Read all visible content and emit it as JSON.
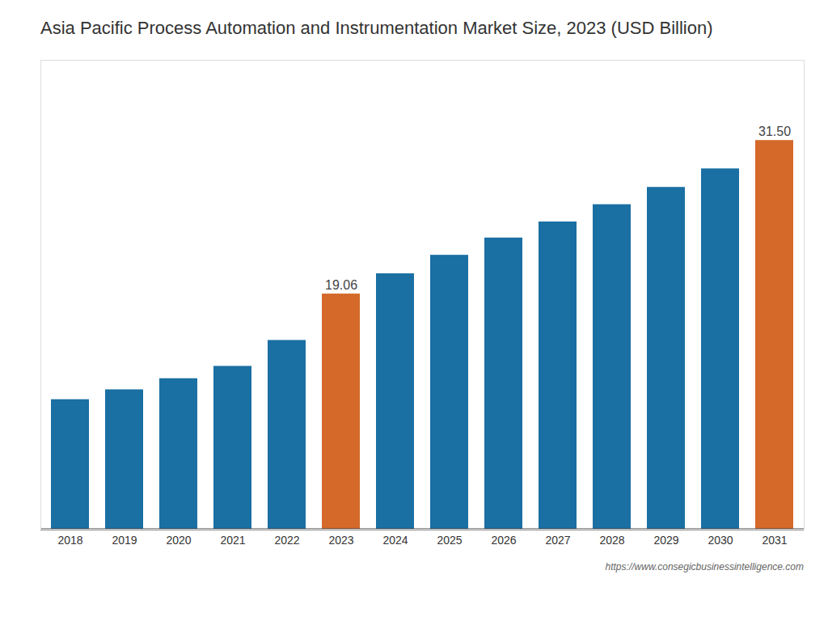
{
  "chart_data": {
    "type": "bar",
    "title": "Asia Pacific Process Automation and Instrumentation Market Size, 2023 (USD Billion)",
    "categories": [
      "2018",
      "2019",
      "2020",
      "2021",
      "2022",
      "2023",
      "2024",
      "2025",
      "2026",
      "2027",
      "2028",
      "2029",
      "2030",
      "2031"
    ],
    "values": [
      10.5,
      11.3,
      12.2,
      13.2,
      15.3,
      19.06,
      20.7,
      22.2,
      23.6,
      24.9,
      26.3,
      27.7,
      29.2,
      31.5
    ],
    "colors": [
      "#1a6fa3",
      "#1a6fa3",
      "#1a6fa3",
      "#1a6fa3",
      "#1a6fa3",
      "#d4692a",
      "#1a6fa3",
      "#1a6fa3",
      "#1a6fa3",
      "#1a6fa3",
      "#1a6fa3",
      "#1a6fa3",
      "#1a6fa3",
      "#d4692a"
    ],
    "data_labels": true,
    "value_labels": [
      null,
      null,
      null,
      null,
      null,
      "19.06",
      null,
      null,
      null,
      null,
      null,
      null,
      null,
      "31.50"
    ],
    "ylim": [
      0,
      38
    ],
    "tick_labels": "x",
    "grid": false,
    "annotations": [
      "https://www.consegicbusinessintelligence.com"
    ]
  }
}
